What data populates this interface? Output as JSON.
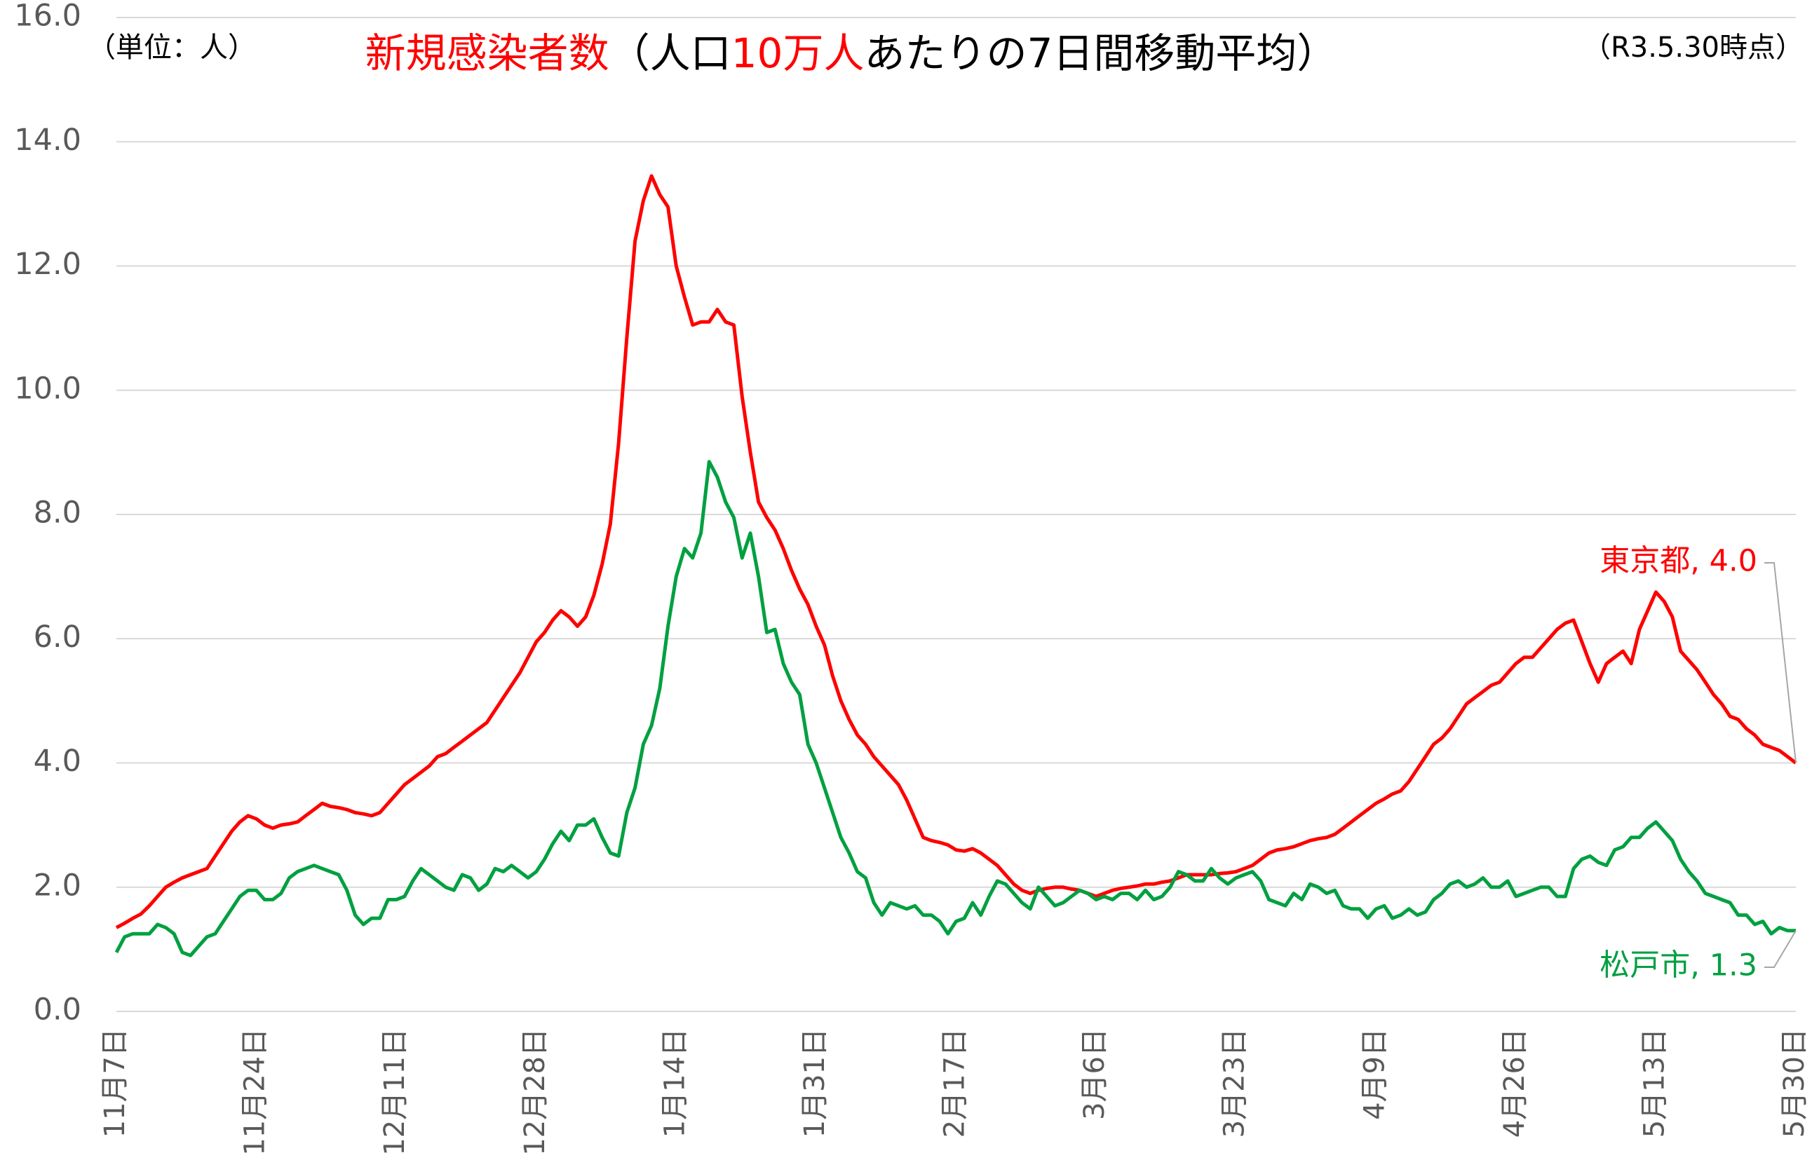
{
  "chart_data": {
    "type": "line",
    "title": [
      {
        "text": "新規感染者数",
        "color": "#ff0000"
      },
      {
        "text": "（人口",
        "color": "#000000"
      },
      {
        "text": "10万人",
        "color": "#ff0000"
      },
      {
        "text": "あたりの7日間移動平均）",
        "color": "#000000"
      }
    ],
    "unit_label": "（単位：人）",
    "as_of": "（R3.5.30時点）",
    "ylim": [
      0,
      16
    ],
    "yticks": [
      {
        "value": 0,
        "label": "0.0"
      },
      {
        "value": 2,
        "label": "2.0"
      },
      {
        "value": 4,
        "label": "4.0"
      },
      {
        "value": 6,
        "label": "6.0"
      },
      {
        "value": 8,
        "label": "8.0"
      },
      {
        "value": 10,
        "label": "10.0"
      },
      {
        "value": 12,
        "label": "12.0"
      },
      {
        "value": 14,
        "label": "14.0"
      },
      {
        "value": 16,
        "label": "16.0"
      }
    ],
    "grid": true,
    "categories": [
      "11月7日",
      null,
      null,
      null,
      null,
      null,
      null,
      null,
      null,
      null,
      null,
      null,
      null,
      null,
      null,
      null,
      null,
      "11月24日",
      null,
      null,
      null,
      null,
      null,
      null,
      null,
      null,
      null,
      null,
      null,
      null,
      null,
      null,
      null,
      null,
      "12月11日",
      null,
      null,
      null,
      null,
      null,
      null,
      null,
      null,
      null,
      null,
      null,
      null,
      null,
      null,
      null,
      null,
      "12月28日",
      null,
      null,
      null,
      null,
      null,
      null,
      null,
      null,
      null,
      null,
      null,
      null,
      null,
      null,
      null,
      null,
      "1月14日",
      null,
      null,
      null,
      null,
      null,
      null,
      null,
      null,
      null,
      null,
      null,
      null,
      null,
      null,
      null,
      null,
      "1月31日",
      null,
      null,
      null,
      null,
      null,
      null,
      null,
      null,
      null,
      null,
      null,
      null,
      null,
      null,
      null,
      null,
      "2月17日",
      null,
      null,
      null,
      null,
      null,
      null,
      null,
      null,
      null,
      null,
      null,
      null,
      null,
      null,
      null,
      null,
      "3月6日",
      null,
      null,
      null,
      null,
      null,
      null,
      null,
      null,
      null,
      null,
      null,
      null,
      null,
      null,
      null,
      null,
      "3月23日",
      null,
      null,
      null,
      null,
      null,
      null,
      null,
      null,
      null,
      null,
      null,
      null,
      null,
      null,
      null,
      null,
      "4月9日",
      null,
      null,
      null,
      null,
      null,
      null,
      null,
      null,
      null,
      null,
      null,
      null,
      null,
      null,
      null,
      null,
      "4月26日",
      null,
      null,
      null,
      null,
      null,
      null,
      null,
      null,
      null,
      null,
      null,
      null,
      null,
      null,
      null,
      null,
      "5月13日",
      null,
      null,
      null,
      null,
      null,
      null,
      null,
      null,
      null,
      null,
      null,
      null,
      null,
      null,
      null,
      null,
      "5月30日"
    ],
    "series": [
      {
        "name": "東京都",
        "color": "#ff0000",
        "end_label": "東京都, 4.0",
        "values": [
          1.35,
          1.42,
          1.5,
          1.57,
          1.7,
          1.85,
          2.0,
          2.08,
          2.15,
          2.2,
          2.25,
          2.3,
          2.5,
          2.7,
          2.9,
          3.05,
          3.15,
          3.1,
          3.0,
          2.95,
          3.0,
          3.02,
          3.05,
          3.15,
          3.25,
          3.35,
          3.3,
          3.28,
          3.25,
          3.2,
          3.18,
          3.15,
          3.2,
          3.35,
          3.5,
          3.65,
          3.75,
          3.85,
          3.95,
          4.1,
          4.15,
          4.25,
          4.35,
          4.45,
          4.55,
          4.65,
          4.85,
          5.05,
          5.25,
          5.45,
          5.7,
          5.95,
          6.1,
          6.3,
          6.45,
          6.35,
          6.2,
          6.35,
          6.7,
          7.2,
          7.85,
          9.15,
          10.85,
          12.4,
          13.05,
          13.45,
          13.15,
          12.95,
          12.0,
          11.5,
          11.05,
          11.1,
          11.1,
          11.3,
          11.1,
          11.05,
          9.9,
          9.0,
          8.2,
          7.95,
          7.75,
          7.45,
          7.1,
          6.8,
          6.55,
          6.2,
          5.9,
          5.4,
          5.0,
          4.7,
          4.45,
          4.3,
          4.1,
          3.95,
          3.8,
          3.65,
          3.4,
          3.1,
          2.8,
          2.75,
          2.72,
          2.68,
          2.6,
          2.58,
          2.62,
          2.55,
          2.45,
          2.35,
          2.2,
          2.05,
          1.95,
          1.9,
          1.95,
          1.98,
          2.0,
          2.0,
          1.97,
          1.95,
          1.9,
          1.85,
          1.9,
          1.95,
          1.98,
          2.0,
          2.02,
          2.05,
          2.05,
          2.08,
          2.1,
          2.15,
          2.2,
          2.2,
          2.2,
          2.2,
          2.22,
          2.23,
          2.25,
          2.3,
          2.35,
          2.45,
          2.55,
          2.6,
          2.62,
          2.65,
          2.7,
          2.75,
          2.78,
          2.8,
          2.85,
          2.95,
          3.05,
          3.15,
          3.25,
          3.35,
          3.42,
          3.5,
          3.55,
          3.7,
          3.9,
          4.1,
          4.3,
          4.4,
          4.55,
          4.75,
          4.95,
          5.05,
          5.15,
          5.25,
          5.3,
          5.45,
          5.6,
          5.7,
          5.7,
          5.85,
          6.0,
          6.15,
          6.25,
          6.3,
          5.95,
          5.6,
          5.3,
          5.6,
          5.7,
          5.8,
          5.6,
          6.15,
          6.45,
          6.75,
          6.6,
          6.35,
          5.8,
          5.65,
          5.5,
          5.3,
          5.1,
          4.95,
          4.75,
          4.7,
          4.55,
          4.45,
          4.3,
          4.25,
          4.2,
          4.1,
          4.0
        ]
      },
      {
        "name": "松戸市",
        "color": "#00a040",
        "end_label": "松戸市, 1.3",
        "values": [
          0.95,
          1.2,
          1.25,
          1.25,
          1.25,
          1.4,
          1.35,
          1.25,
          0.95,
          0.9,
          1.05,
          1.2,
          1.25,
          1.45,
          1.65,
          1.85,
          1.95,
          1.95,
          1.8,
          1.8,
          1.9,
          2.15,
          2.25,
          2.3,
          2.35,
          2.3,
          2.25,
          2.2,
          1.95,
          1.55,
          1.4,
          1.5,
          1.5,
          1.8,
          1.8,
          1.85,
          2.1,
          2.3,
          2.2,
          2.1,
          2.0,
          1.95,
          2.2,
          2.15,
          1.95,
          2.05,
          2.3,
          2.25,
          2.35,
          2.25,
          2.15,
          2.25,
          2.45,
          2.7,
          2.9,
          2.75,
          3.0,
          3.0,
          3.1,
          2.8,
          2.55,
          2.5,
          3.2,
          3.6,
          4.3,
          4.6,
          5.2,
          6.2,
          7.0,
          7.45,
          7.3,
          7.7,
          8.85,
          8.6,
          8.2,
          7.95,
          7.3,
          7.7,
          7.0,
          6.1,
          6.15,
          5.6,
          5.3,
          5.1,
          4.3,
          4.0,
          3.6,
          3.2,
          2.8,
          2.55,
          2.25,
          2.15,
          1.75,
          1.55,
          1.75,
          1.7,
          1.65,
          1.7,
          1.55,
          1.55,
          1.45,
          1.25,
          1.45,
          1.5,
          1.75,
          1.55,
          1.85,
          2.1,
          2.05,
          1.9,
          1.75,
          1.65,
          2.0,
          1.85,
          1.7,
          1.75,
          1.85,
          1.95,
          1.9,
          1.8,
          1.85,
          1.8,
          1.9,
          1.9,
          1.8,
          1.95,
          1.8,
          1.85,
          2.0,
          2.25,
          2.2,
          2.1,
          2.1,
          2.3,
          2.15,
          2.05,
          2.15,
          2.2,
          2.25,
          2.1,
          1.8,
          1.75,
          1.7,
          1.9,
          1.8,
          2.05,
          2.0,
          1.9,
          1.95,
          1.7,
          1.65,
          1.65,
          1.5,
          1.65,
          1.7,
          1.5,
          1.55,
          1.65,
          1.55,
          1.6,
          1.8,
          1.9,
          2.05,
          2.1,
          2.0,
          2.05,
          2.15,
          2.0,
          2.0,
          2.1,
          1.85,
          1.9,
          1.95,
          2.0,
          2.0,
          1.85,
          1.85,
          2.3,
          2.45,
          2.5,
          2.4,
          2.35,
          2.6,
          2.65,
          2.8,
          2.8,
          2.95,
          3.05,
          2.9,
          2.75,
          2.45,
          2.25,
          2.1,
          1.9,
          1.85,
          1.8,
          1.75,
          1.55,
          1.55,
          1.4,
          1.45,
          1.25,
          1.35,
          1.3,
          1.3
        ]
      }
    ]
  }
}
